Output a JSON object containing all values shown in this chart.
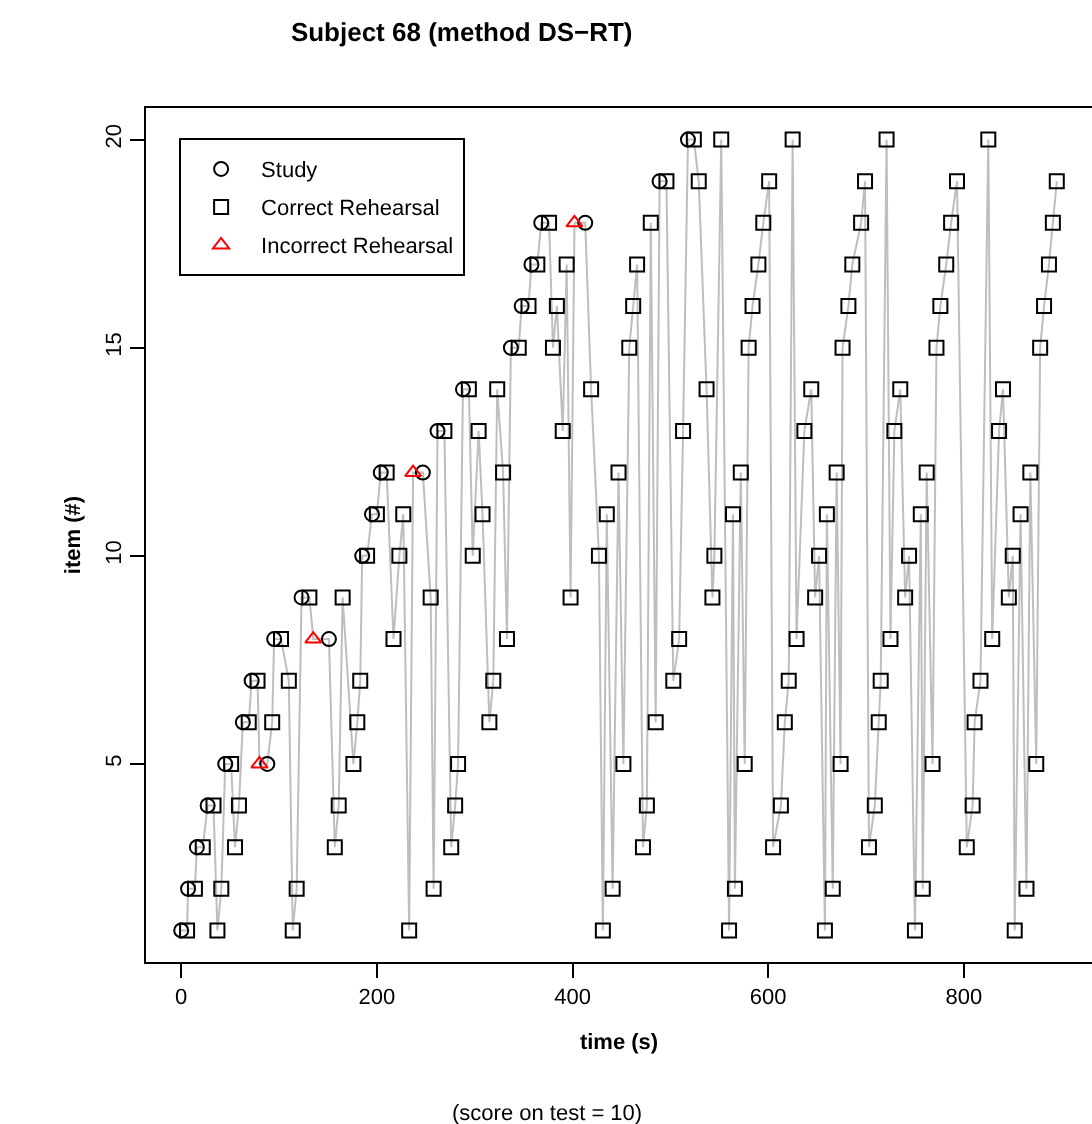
{
  "chart_data": {
    "type": "scatter",
    "title": "Subject 68 (method DS−RT)",
    "xlabel": "time (s)",
    "ylabel": "item (#)",
    "annotations": [
      "(score on test = 10)"
    ],
    "xlim": [
      -36,
      931
    ],
    "xticks": [
      0,
      200,
      400,
      600,
      800
    ],
    "ylim": [
      0.24,
      20.76
    ],
    "yticks": [
      5,
      10,
      15,
      20
    ],
    "grid": false,
    "legend": "top left",
    "series": [
      {
        "type": "line",
        "color": "#bebebe",
        "marker": "none",
        "line_style": "solid",
        "x": [
          0,
          6,
          7,
          14,
          16,
          22,
          27,
          33,
          37,
          41,
          45,
          51,
          55,
          59,
          63,
          69,
          72,
          78,
          80,
          88,
          93,
          95,
          102,
          110,
          114,
          118,
          123,
          131,
          135,
          151,
          157,
          161,
          165,
          176,
          180,
          183,
          185,
          190,
          195,
          200,
          204,
          210,
          217,
          223,
          227,
          233,
          237,
          247,
          255,
          258,
          262,
          269,
          276,
          280,
          283,
          288,
          294,
          298,
          304,
          308,
          315,
          319,
          323,
          329,
          333,
          337,
          345,
          348,
          355,
          358,
          364,
          368,
          376,
          380,
          384,
          390,
          394,
          398,
          402,
          413,
          419,
          427,
          431,
          435,
          441,
          447,
          452,
          458,
          462,
          466,
          472,
          476,
          480,
          485,
          489,
          496,
          503,
          509,
          513,
          518,
          524,
          529,
          537,
          543,
          545,
          552,
          560,
          564,
          566,
          572,
          576,
          580,
          584,
          590,
          595,
          601,
          605,
          613,
          617,
          621,
          625,
          629,
          637,
          644,
          648,
          652,
          658,
          660,
          666,
          670,
          674,
          676,
          682,
          686,
          695,
          699,
          703,
          709,
          713,
          715,
          721,
          725,
          729,
          735,
          740,
          744,
          750,
          756,
          758,
          762,
          768,
          772,
          776,
          782,
          787,
          793,
          803,
          809,
          811,
          817,
          825,
          829,
          836,
          840,
          846,
          850,
          852,
          858,
          864,
          868,
          874,
          878,
          882,
          887,
          891,
          895
        ],
        "values": [
          1,
          1,
          2,
          2,
          3,
          3,
          4,
          4,
          1,
          2,
          5,
          5,
          3,
          4,
          6,
          6,
          7,
          7,
          5,
          5,
          6,
          8,
          8,
          7,
          1,
          2,
          9,
          9,
          8,
          8,
          3,
          4,
          9,
          5,
          6,
          7,
          10,
          10,
          11,
          11,
          12,
          12,
          8,
          10,
          11,
          1,
          12,
          12,
          9,
          2,
          13,
          13,
          3,
          4,
          5,
          14,
          14,
          10,
          13,
          11,
          6,
          7,
          14,
          12,
          8,
          15,
          15,
          16,
          16,
          17,
          17,
          18,
          18,
          15,
          16,
          13,
          17,
          9,
          18,
          18,
          14,
          10,
          1,
          11,
          2,
          12,
          5,
          15,
          16,
          17,
          3,
          4,
          18,
          6,
          19,
          19,
          7,
          8,
          13,
          20,
          20,
          19,
          14,
          9,
          10,
          20,
          1,
          11,
          2,
          12,
          5,
          15,
          16,
          17,
          18,
          19,
          3,
          4,
          6,
          7,
          20,
          8,
          13,
          14,
          9,
          10,
          1,
          11,
          2,
          12,
          5,
          15,
          16,
          17,
          18,
          19,
          3,
          4,
          6,
          7,
          20,
          8,
          13,
          14,
          9,
          10,
          1,
          11,
          2,
          12,
          5,
          15,
          16,
          17,
          18,
          19,
          3,
          4,
          6,
          7,
          20,
          8,
          13,
          14,
          9,
          10,
          1,
          11,
          2,
          12,
          5,
          15,
          16,
          17,
          18,
          19
        ]
      },
      {
        "name": "Study",
        "color": "#000000",
        "marker": "circle",
        "x": [
          0,
          7,
          16,
          27,
          45,
          63,
          72,
          88,
          95,
          123,
          151,
          185,
          195,
          204,
          247,
          262,
          288,
          337,
          348,
          358,
          368,
          413,
          489,
          518
        ],
        "values": [
          1,
          2,
          3,
          4,
          5,
          6,
          7,
          5,
          8,
          9,
          8,
          10,
          11,
          12,
          12,
          13,
          14,
          15,
          16,
          17,
          18,
          18,
          19,
          20
        ]
      },
      {
        "name": "Correct Rehearsal",
        "color": "#000000",
        "marker": "square",
        "x": [
          6,
          14,
          22,
          33,
          37,
          41,
          51,
          55,
          59,
          69,
          78,
          93,
          102,
          110,
          114,
          118,
          131,
          157,
          161,
          165,
          176,
          180,
          183,
          190,
          200,
          210,
          217,
          223,
          227,
          233,
          255,
          258,
          269,
          276,
          280,
          283,
          294,
          298,
          304,
          308,
          315,
          319,
          323,
          329,
          333,
          345,
          355,
          364,
          376,
          380,
          384,
          390,
          394,
          398,
          419,
          427,
          431,
          435,
          441,
          447,
          452,
          458,
          462,
          466,
          472,
          476,
          480,
          485,
          496,
          503,
          509,
          513,
          524,
          529,
          537,
          543,
          545,
          552,
          560,
          564,
          566,
          572,
          576,
          580,
          584,
          590,
          595,
          601,
          605,
          613,
          617,
          621,
          625,
          629,
          637,
          644,
          648,
          652,
          658,
          660,
          666,
          670,
          674,
          676,
          682,
          686,
          695,
          699,
          703,
          709,
          713,
          715,
          721,
          725,
          729,
          735,
          740,
          744,
          750,
          756,
          758,
          762,
          768,
          772,
          776,
          782,
          787,
          793,
          803,
          809,
          811,
          817,
          825,
          829,
          836,
          840,
          846,
          850,
          852,
          858,
          864,
          868,
          874,
          878,
          882,
          887,
          891,
          895
        ],
        "values": [
          1,
          2,
          3,
          4,
          1,
          2,
          5,
          3,
          4,
          6,
          7,
          6,
          8,
          7,
          1,
          2,
          9,
          3,
          4,
          9,
          5,
          6,
          7,
          10,
          11,
          12,
          8,
          10,
          11,
          1,
          9,
          2,
          13,
          3,
          4,
          5,
          14,
          10,
          13,
          11,
          6,
          7,
          14,
          12,
          8,
          15,
          16,
          17,
          18,
          15,
          16,
          13,
          17,
          9,
          14,
          10,
          1,
          11,
          2,
          12,
          5,
          15,
          16,
          17,
          3,
          4,
          18,
          6,
          19,
          7,
          8,
          13,
          20,
          19,
          14,
          9,
          10,
          20,
          1,
          11,
          2,
          12,
          5,
          15,
          16,
          17,
          18,
          19,
          3,
          4,
          6,
          7,
          20,
          8,
          13,
          14,
          9,
          10,
          1,
          11,
          2,
          12,
          5,
          15,
          16,
          17,
          18,
          19,
          3,
          4,
          6,
          7,
          20,
          8,
          13,
          14,
          9,
          10,
          1,
          11,
          2,
          12,
          5,
          15,
          16,
          17,
          18,
          19,
          3,
          4,
          6,
          7,
          20,
          8,
          13,
          14,
          9,
          10,
          1,
          11,
          2,
          12,
          5,
          15,
          16,
          17,
          18,
          19
        ]
      },
      {
        "name": "Incorrect Rehearsal",
        "color": "#ff0000",
        "marker": "triangle",
        "x": [
          80,
          135,
          237,
          402
        ],
        "values": [
          5,
          8,
          12,
          18
        ]
      }
    ]
  }
}
